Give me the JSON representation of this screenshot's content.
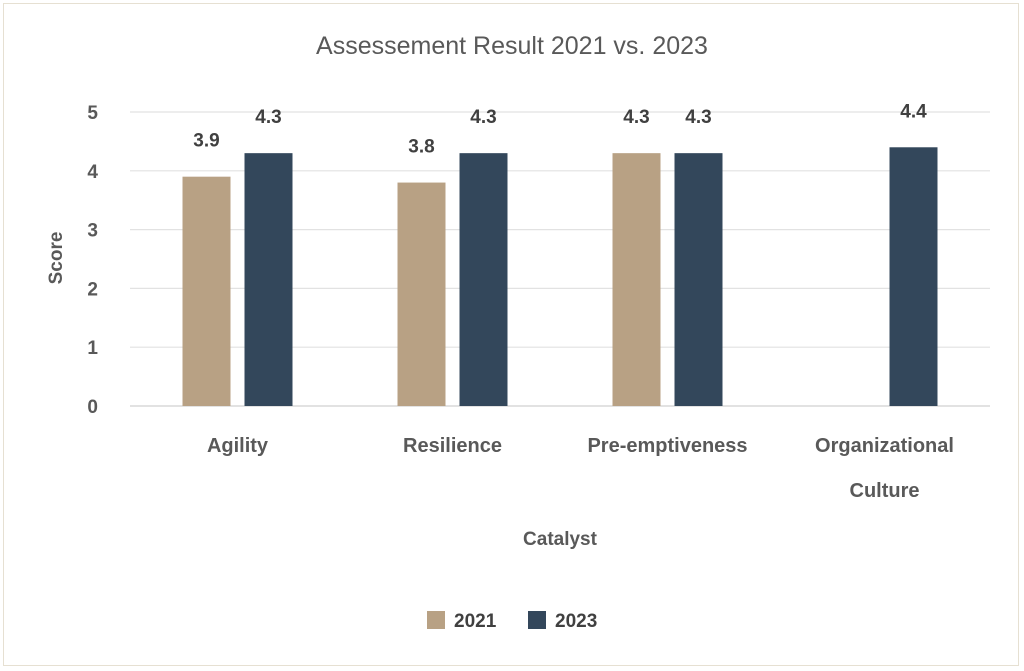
{
  "chart_data": {
    "type": "bar",
    "title": "Assessement Result 2021 vs. 2023",
    "xlabel": "Catalyst",
    "ylabel": "Score",
    "ylim": [
      0,
      5
    ],
    "yticks": [
      0,
      1,
      2,
      3,
      4,
      5
    ],
    "grid": true,
    "legend_position": "bottom",
    "categories": [
      [
        "Agility"
      ],
      [
        "Resilience"
      ],
      [
        "Pre-emptiveness"
      ],
      [
        "Organizational",
        "Culture"
      ]
    ],
    "series": [
      {
        "name": "2021",
        "color": "#b8a184",
        "values": [
          3.9,
          3.8,
          4.3,
          null
        ]
      },
      {
        "name": "2023",
        "color": "#33475b",
        "values": [
          4.3,
          4.3,
          4.3,
          4.4
        ]
      }
    ]
  }
}
